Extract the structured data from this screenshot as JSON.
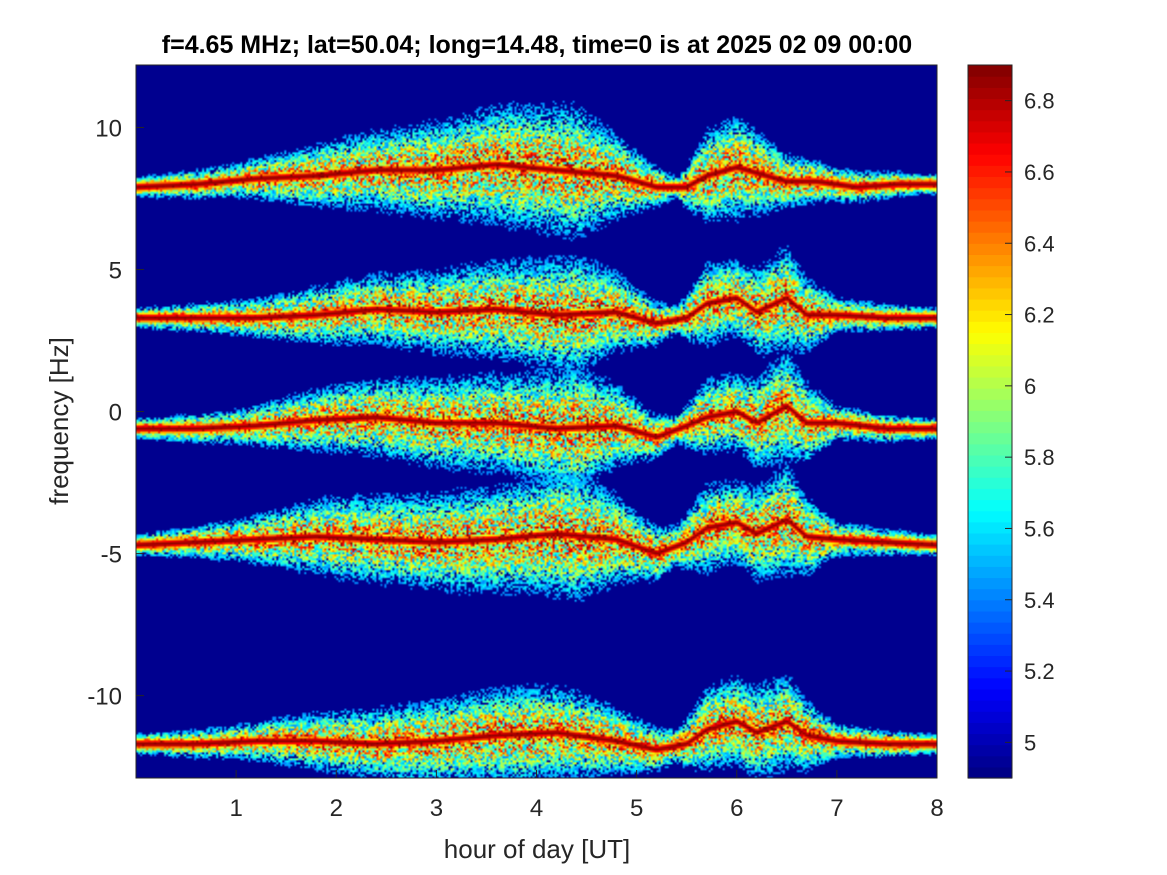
{
  "chart_data": {
    "type": "heatmap",
    "title": "f=4.65 MHz;  lat=50.04; long=14.48, time=0 is at 2025 02 09 00:00",
    "xlabel": "hour of day [UT]",
    "ylabel": "frequency [Hz]",
    "xlim": [
      0,
      8
    ],
    "ylim": [
      -12.9,
      12.2
    ],
    "x_ticks": [
      1,
      2,
      3,
      4,
      5,
      6,
      7,
      8
    ],
    "y_ticks": [
      -10,
      -5,
      0,
      5,
      10
    ],
    "colormap": "jet",
    "clim": [
      4.9,
      6.9
    ],
    "colorbar_ticks": [
      5,
      5.2,
      5.4,
      5.6,
      5.8,
      6,
      6.2,
      6.4,
      6.6,
      6.8
    ],
    "background_color": "#00008f",
    "bands": [
      {
        "trace": [
          [
            0,
            7.9
          ],
          [
            0.6,
            8.0
          ],
          [
            1.2,
            8.2
          ],
          [
            1.8,
            8.3
          ],
          [
            2.4,
            8.5
          ],
          [
            3.0,
            8.5
          ],
          [
            3.6,
            8.7
          ],
          [
            4.2,
            8.5
          ],
          [
            4.8,
            8.3
          ],
          [
            5.2,
            7.9
          ],
          [
            5.5,
            7.9
          ],
          [
            5.7,
            8.3
          ],
          [
            6.0,
            8.6
          ],
          [
            6.3,
            8.3
          ],
          [
            6.5,
            8.1
          ],
          [
            6.8,
            8.1
          ],
          [
            7.2,
            7.9
          ],
          [
            7.6,
            8.0
          ],
          [
            8,
            8.0
          ]
        ],
        "spread": [
          [
            0,
            0.3
          ],
          [
            1,
            0.5
          ],
          [
            2,
            1.0
          ],
          [
            3,
            1.4
          ],
          [
            3.8,
            1.8
          ],
          [
            4.4,
            1.9
          ],
          [
            5.0,
            0.9
          ],
          [
            5.4,
            0.3
          ],
          [
            5.7,
            1.3
          ],
          [
            6.0,
            1.5
          ],
          [
            6.5,
            0.8
          ],
          [
            7,
            0.5
          ],
          [
            8,
            0.3
          ]
        ]
      },
      {
        "trace": [
          [
            0,
            3.3
          ],
          [
            0.6,
            3.3
          ],
          [
            1.2,
            3.3
          ],
          [
            1.8,
            3.4
          ],
          [
            2.4,
            3.6
          ],
          [
            3.0,
            3.5
          ],
          [
            3.6,
            3.6
          ],
          [
            4.2,
            3.4
          ],
          [
            4.8,
            3.5
          ],
          [
            5.2,
            3.1
          ],
          [
            5.5,
            3.3
          ],
          [
            5.7,
            3.8
          ],
          [
            6.0,
            4.0
          ],
          [
            6.2,
            3.5
          ],
          [
            6.5,
            4.0
          ],
          [
            6.7,
            3.4
          ],
          [
            7.0,
            3.4
          ],
          [
            7.5,
            3.3
          ],
          [
            8,
            3.3
          ]
        ],
        "spread": [
          [
            0,
            0.3
          ],
          [
            1,
            0.5
          ],
          [
            2,
            0.9
          ],
          [
            3,
            1.2
          ],
          [
            3.8,
            1.5
          ],
          [
            4.4,
            1.7
          ],
          [
            5.0,
            0.9
          ],
          [
            5.4,
            0.4
          ],
          [
            5.7,
            1.2
          ],
          [
            6.0,
            1.1
          ],
          [
            6.5,
            1.5
          ],
          [
            7,
            0.5
          ],
          [
            8,
            0.3
          ]
        ]
      },
      {
        "trace": [
          [
            0,
            -0.6
          ],
          [
            0.6,
            -0.6
          ],
          [
            1.2,
            -0.5
          ],
          [
            1.8,
            -0.3
          ],
          [
            2.4,
            -0.2
          ],
          [
            3.0,
            -0.4
          ],
          [
            3.6,
            -0.4
          ],
          [
            4.2,
            -0.6
          ],
          [
            4.8,
            -0.5
          ],
          [
            5.2,
            -0.9
          ],
          [
            5.5,
            -0.5
          ],
          [
            5.7,
            -0.2
          ],
          [
            6.0,
            0.0
          ],
          [
            6.2,
            -0.4
          ],
          [
            6.5,
            0.2
          ],
          [
            6.7,
            -0.4
          ],
          [
            7.0,
            -0.4
          ],
          [
            7.5,
            -0.6
          ],
          [
            8,
            -0.6
          ]
        ],
        "spread": [
          [
            0,
            0.3
          ],
          [
            1,
            0.5
          ],
          [
            2,
            1.0
          ],
          [
            3,
            1.3
          ],
          [
            3.8,
            1.5
          ],
          [
            4.4,
            1.8
          ],
          [
            5.0,
            0.9
          ],
          [
            5.4,
            0.4
          ],
          [
            5.7,
            1.1
          ],
          [
            6.0,
            1.1
          ],
          [
            6.5,
            1.6
          ],
          [
            7,
            0.5
          ],
          [
            8,
            0.3
          ]
        ]
      },
      {
        "trace": [
          [
            0,
            -4.7
          ],
          [
            0.6,
            -4.6
          ],
          [
            1.2,
            -4.5
          ],
          [
            1.8,
            -4.4
          ],
          [
            2.4,
            -4.5
          ],
          [
            3.0,
            -4.6
          ],
          [
            3.6,
            -4.5
          ],
          [
            4.2,
            -4.3
          ],
          [
            4.8,
            -4.5
          ],
          [
            5.2,
            -5.0
          ],
          [
            5.5,
            -4.6
          ],
          [
            5.7,
            -4.1
          ],
          [
            6.0,
            -3.9
          ],
          [
            6.2,
            -4.3
          ],
          [
            6.5,
            -3.8
          ],
          [
            6.7,
            -4.4
          ],
          [
            7.0,
            -4.5
          ],
          [
            7.5,
            -4.6
          ],
          [
            8,
            -4.7
          ]
        ],
        "spread": [
          [
            0,
            0.3
          ],
          [
            1,
            0.6
          ],
          [
            2,
            1.2
          ],
          [
            3,
            1.4
          ],
          [
            3.8,
            1.6
          ],
          [
            4.4,
            1.9
          ],
          [
            5.0,
            1.0
          ],
          [
            5.4,
            0.6
          ],
          [
            5.7,
            1.3
          ],
          [
            6.0,
            1.2
          ],
          [
            6.5,
            1.6
          ],
          [
            7,
            0.5
          ],
          [
            8,
            0.3
          ]
        ]
      },
      {
        "trace": [
          [
            0,
            -11.7
          ],
          [
            0.6,
            -11.7
          ],
          [
            1.2,
            -11.6
          ],
          [
            1.8,
            -11.6
          ],
          [
            2.4,
            -11.7
          ],
          [
            3.0,
            -11.6
          ],
          [
            3.6,
            -11.4
          ],
          [
            4.2,
            -11.3
          ],
          [
            4.8,
            -11.6
          ],
          [
            5.2,
            -11.9
          ],
          [
            5.5,
            -11.7
          ],
          [
            5.7,
            -11.2
          ],
          [
            6.0,
            -10.9
          ],
          [
            6.2,
            -11.3
          ],
          [
            6.5,
            -10.9
          ],
          [
            6.7,
            -11.4
          ],
          [
            7.0,
            -11.6
          ],
          [
            7.5,
            -11.7
          ],
          [
            8,
            -11.7
          ]
        ],
        "spread": [
          [
            0,
            0.3
          ],
          [
            1,
            0.5
          ],
          [
            2,
            0.9
          ],
          [
            3,
            1.2
          ],
          [
            3.8,
            1.4
          ],
          [
            4.4,
            1.3
          ],
          [
            5.0,
            0.8
          ],
          [
            5.4,
            0.5
          ],
          [
            5.7,
            1.2
          ],
          [
            6.0,
            1.3
          ],
          [
            6.5,
            1.4
          ],
          [
            7,
            0.5
          ],
          [
            8,
            0.3
          ]
        ]
      }
    ]
  }
}
